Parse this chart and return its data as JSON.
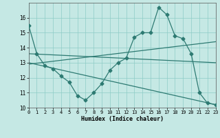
{
  "title": "",
  "xlabel": "Humidex (Indice chaleur)",
  "xlim": [
    0,
    23
  ],
  "ylim": [
    10,
    17
  ],
  "yticks": [
    10,
    11,
    12,
    13,
    14,
    15,
    16
  ],
  "xticks": [
    0,
    1,
    2,
    3,
    4,
    5,
    6,
    7,
    8,
    9,
    10,
    11,
    12,
    13,
    14,
    15,
    16,
    17,
    18,
    19,
    20,
    21,
    22,
    23
  ],
  "background_color": "#c5e8e4",
  "line_color": "#2d7a72",
  "grid_color": "#8eccc6",
  "line1_x": [
    0,
    1,
    2,
    3,
    4,
    5,
    6,
    7,
    8,
    9,
    10,
    11,
    12,
    13,
    14,
    15,
    16,
    17,
    18,
    19,
    20,
    21,
    22,
    23
  ],
  "line1_y": [
    15.5,
    13.6,
    12.8,
    12.6,
    12.1,
    11.7,
    10.8,
    10.5,
    11.0,
    11.6,
    12.5,
    13.0,
    13.3,
    14.7,
    15.0,
    15.0,
    16.7,
    16.2,
    14.8,
    14.6,
    13.6,
    11.0,
    10.3,
    10.2
  ],
  "line2_x": [
    0,
    23
  ],
  "line2_y": [
    13.6,
    13.0
  ],
  "line3_x": [
    0,
    23
  ],
  "line3_y": [
    12.9,
    14.4
  ],
  "line4_x": [
    0,
    23
  ],
  "line4_y": [
    13.0,
    10.2
  ],
  "marker": "D",
  "marker_size": 2.5,
  "lw": 0.9
}
